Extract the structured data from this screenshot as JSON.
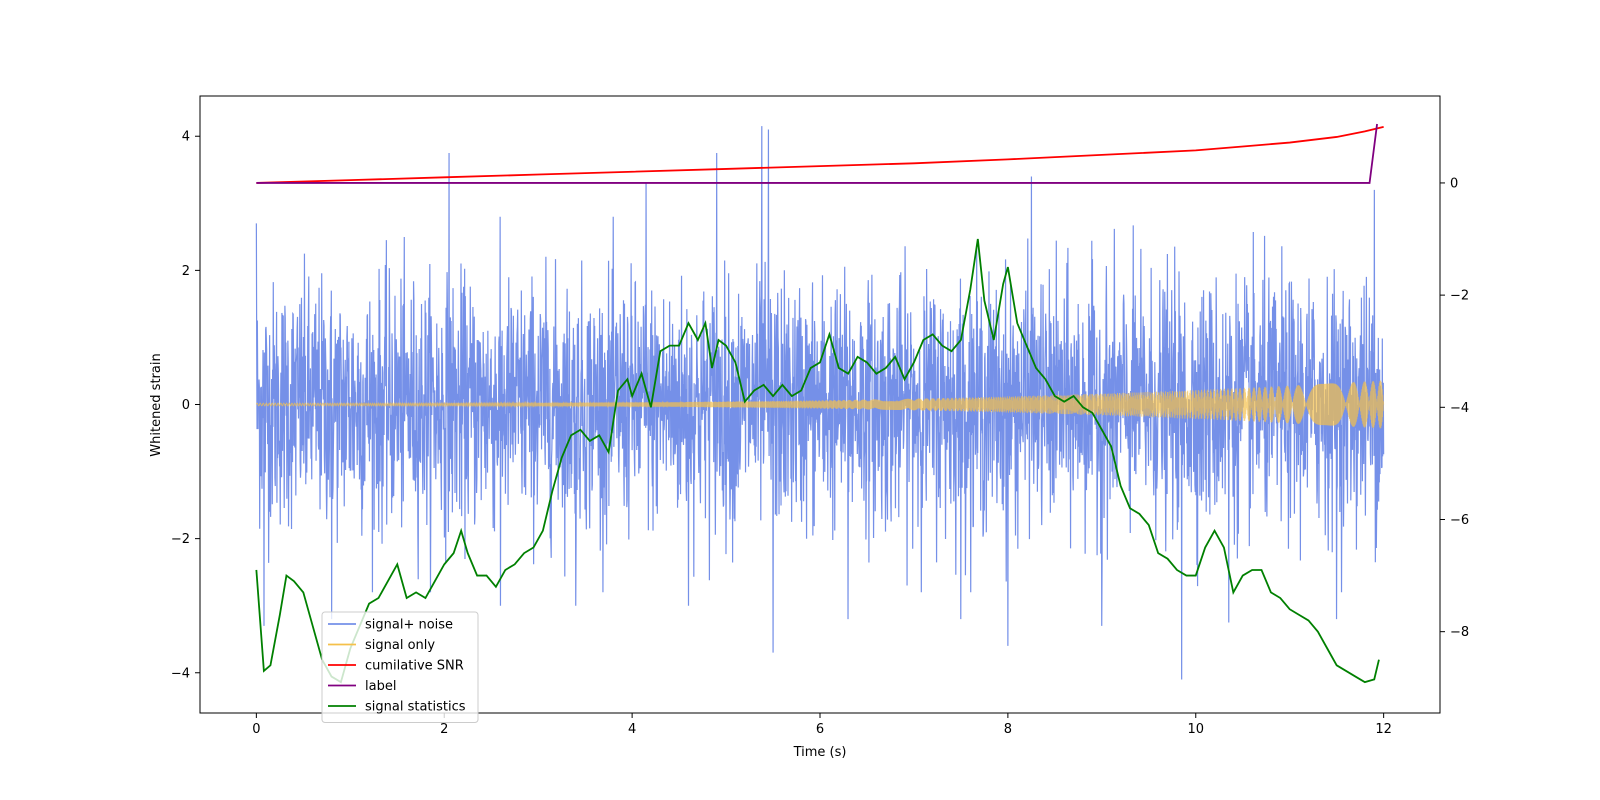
{
  "chart_data": {
    "type": "line",
    "title": "",
    "xlabel": "Time (s)",
    "ylabel": "Whitened strain",
    "xlim": [
      -0.6,
      12.6
    ],
    "ylim": [
      -4.6,
      4.6
    ],
    "y2lim": [
      -9.45,
      1.55
    ],
    "grid": false,
    "legend_position": "lower-left",
    "x_ticks": [
      0,
      2,
      4,
      6,
      8,
      10,
      12
    ],
    "y_ticks": [
      -4,
      -2,
      0,
      2,
      4
    ],
    "y2_ticks": [
      -8,
      -6,
      -4,
      -2,
      0
    ],
    "series": [
      {
        "name": "signal+ noise",
        "axis": "left",
        "color": "#7590e8",
        "t_range": [
          0,
          12
        ],
        "typical_band": [
          -2.4,
          2.4
        ],
        "noise_std": 0.9,
        "spikes": [
          {
            "t": 0.0,
            "v": 2.7
          },
          {
            "t": 0.08,
            "v": -3.3
          },
          {
            "t": 0.8,
            "v": -3.2
          },
          {
            "t": 2.05,
            "v": 3.75
          },
          {
            "t": 2.6,
            "v": -3.0
          },
          {
            "t": 3.4,
            "v": -3.0
          },
          {
            "t": 4.15,
            "v": 3.3
          },
          {
            "t": 4.9,
            "v": 3.75
          },
          {
            "t": 4.6,
            "v": -3.0
          },
          {
            "t": 5.38,
            "v": 4.15
          },
          {
            "t": 5.45,
            "v": 4.1
          },
          {
            "t": 5.5,
            "v": -3.7
          },
          {
            "t": 6.3,
            "v": -3.2
          },
          {
            "t": 7.5,
            "v": -3.2
          },
          {
            "t": 8.0,
            "v": -3.6
          },
          {
            "t": 8.25,
            "v": 3.4
          },
          {
            "t": 9.0,
            "v": -3.3
          },
          {
            "t": 9.85,
            "v": -4.1
          },
          {
            "t": 10.35,
            "v": -3.25
          },
          {
            "t": 11.5,
            "v": -3.2
          },
          {
            "t": 11.9,
            "v": 3.2
          }
        ]
      },
      {
        "name": "signal only",
        "axis": "left",
        "color": "#f5c04a",
        "t_range": [
          0,
          12
        ],
        "amplitude_start": 0.02,
        "amplitude_end": 0.36
      },
      {
        "name": "cumilative SNR",
        "axis": "right",
        "color": "#ff0000",
        "t": [
          0,
          1,
          2,
          3,
          4,
          5,
          6,
          7,
          8,
          9,
          10,
          10.5,
          11,
          11.5,
          11.8,
          12
        ],
        "values": [
          0.0,
          0.05,
          0.1,
          0.15,
          0.2,
          0.25,
          0.3,
          0.35,
          0.42,
          0.5,
          0.58,
          0.65,
          0.72,
          0.82,
          0.92,
          1.0
        ]
      },
      {
        "name": "label",
        "axis": "right",
        "color": "#800080",
        "t": [
          0,
          11.85,
          11.93
        ],
        "values": [
          0,
          0,
          1.05
        ]
      },
      {
        "name": "signal statistics",
        "axis": "right",
        "color": "#008000",
        "t": [
          0.0,
          0.08,
          0.15,
          0.25,
          0.32,
          0.4,
          0.5,
          0.6,
          0.7,
          0.8,
          0.9,
          1.0,
          1.1,
          1.2,
          1.3,
          1.4,
          1.5,
          1.6,
          1.7,
          1.8,
          1.9,
          2.0,
          2.1,
          2.18,
          2.25,
          2.35,
          2.45,
          2.55,
          2.65,
          2.75,
          2.85,
          2.95,
          3.05,
          3.15,
          3.25,
          3.35,
          3.45,
          3.55,
          3.65,
          3.75,
          3.85,
          3.95,
          4.0,
          4.1,
          4.2,
          4.3,
          4.4,
          4.5,
          4.6,
          4.7,
          4.78,
          4.85,
          4.92,
          5.0,
          5.1,
          5.2,
          5.3,
          5.4,
          5.5,
          5.6,
          5.7,
          5.8,
          5.9,
          6.0,
          6.1,
          6.2,
          6.3,
          6.4,
          6.5,
          6.6,
          6.7,
          6.8,
          6.9,
          7.0,
          7.1,
          7.2,
          7.3,
          7.4,
          7.5,
          7.6,
          7.68,
          7.75,
          7.85,
          7.95,
          8.0,
          8.1,
          8.2,
          8.3,
          8.4,
          8.5,
          8.6,
          8.7,
          8.8,
          8.9,
          9.0,
          9.1,
          9.2,
          9.3,
          9.4,
          9.5,
          9.6,
          9.7,
          9.8,
          9.9,
          10.0,
          10.1,
          10.2,
          10.3,
          10.4,
          10.5,
          10.6,
          10.7,
          10.8,
          10.9,
          11.0,
          11.1,
          11.2,
          11.3,
          11.4,
          11.5,
          11.6,
          11.7,
          11.8,
          11.9,
          11.95
        ],
        "values": [
          -6.9,
          -8.7,
          -8.6,
          -7.7,
          -7.0,
          -7.1,
          -7.3,
          -7.9,
          -8.5,
          -8.8,
          -8.9,
          -8.3,
          -7.9,
          -7.5,
          -7.4,
          -7.1,
          -6.8,
          -7.4,
          -7.3,
          -7.4,
          -7.1,
          -6.8,
          -6.6,
          -6.2,
          -6.6,
          -7.0,
          -7.0,
          -7.2,
          -6.9,
          -6.8,
          -6.6,
          -6.5,
          -6.2,
          -5.5,
          -4.9,
          -4.5,
          -4.4,
          -4.6,
          -4.5,
          -4.8,
          -3.7,
          -3.5,
          -3.8,
          -3.4,
          -4.0,
          -3.0,
          -2.9,
          -2.9,
          -2.5,
          -2.8,
          -2.5,
          -3.3,
          -2.8,
          -2.9,
          -3.2,
          -3.9,
          -3.7,
          -3.6,
          -3.8,
          -3.6,
          -3.8,
          -3.7,
          -3.3,
          -3.2,
          -2.7,
          -3.3,
          -3.4,
          -3.1,
          -3.2,
          -3.4,
          -3.3,
          -3.1,
          -3.5,
          -3.2,
          -2.8,
          -2.7,
          -2.9,
          -3.0,
          -2.8,
          -1.9,
          -1.0,
          -2.1,
          -2.8,
          -1.8,
          -1.5,
          -2.5,
          -2.9,
          -3.3,
          -3.5,
          -3.8,
          -3.9,
          -3.8,
          -4.0,
          -4.1,
          -4.4,
          -4.7,
          -5.4,
          -5.8,
          -5.9,
          -6.1,
          -6.6,
          -6.7,
          -6.9,
          -7.0,
          -7.0,
          -6.5,
          -6.2,
          -6.5,
          -7.3,
          -7.0,
          -6.9,
          -6.9,
          -7.3,
          -7.4,
          -7.6,
          -7.7,
          -7.8,
          -8.0,
          -8.3,
          -8.6,
          -8.7,
          -8.8,
          -8.9,
          -8.85,
          -8.5
        ]
      }
    ]
  }
}
